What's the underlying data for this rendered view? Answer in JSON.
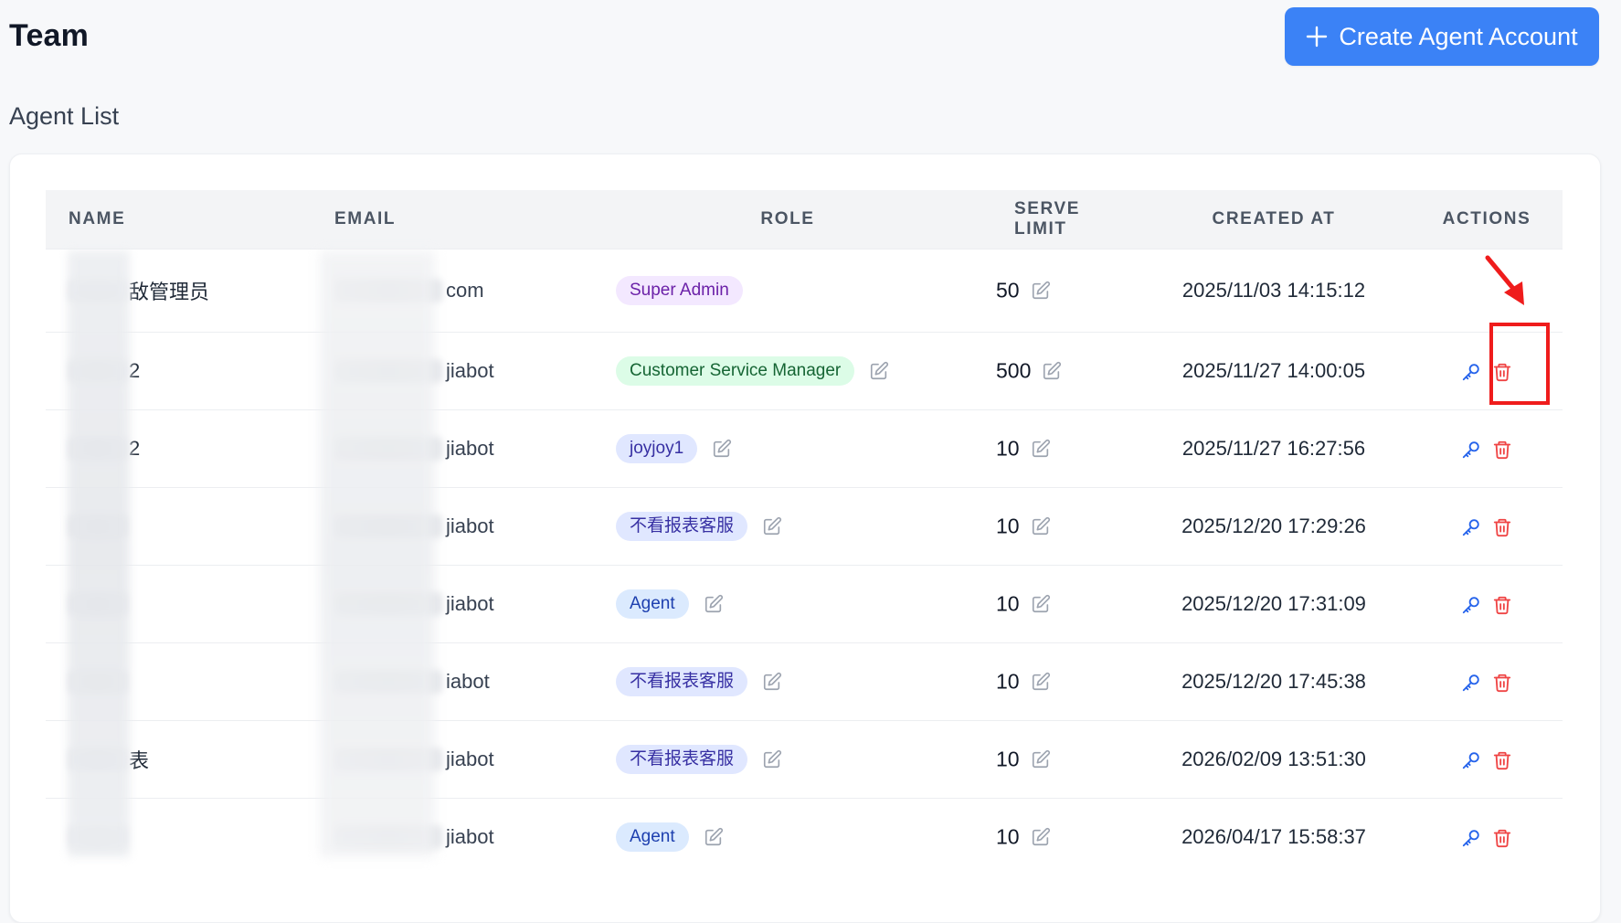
{
  "page": {
    "title": "Team",
    "create_button_label": "Create Agent Account",
    "section_title": "Agent List"
  },
  "table": {
    "headers": {
      "name": "NAME",
      "email": "EMAIL",
      "role": "ROLE",
      "serve_limit": "SERVE LIMIT",
      "created_at": "CREATED AT",
      "actions": "ACTIONS"
    },
    "rows": [
      {
        "name": "敌管理员",
        "email": "com",
        "role": "Super Admin",
        "role_style": "super",
        "role_editable": false,
        "serve_limit": "50",
        "created_at": "2025/11/03 14:15:12",
        "actions_visible": false
      },
      {
        "name": "2",
        "email": "jiabot",
        "role": "Customer Service Manager",
        "role_style": "csm",
        "role_editable": true,
        "serve_limit": "500",
        "created_at": "2025/11/27 14:00:05",
        "actions_visible": true
      },
      {
        "name": "2",
        "email": "jiabot",
        "role": "joyjoy1",
        "role_style": "custom",
        "role_editable": true,
        "serve_limit": "10",
        "created_at": "2025/11/27 16:27:56",
        "actions_visible": true
      },
      {
        "name": "",
        "email": "jiabot",
        "role": "不看报表客服",
        "role_style": "custom",
        "role_editable": true,
        "serve_limit": "10",
        "created_at": "2025/12/20 17:29:26",
        "actions_visible": true
      },
      {
        "name": "",
        "email": "jiabot",
        "role": "Agent",
        "role_style": "agent",
        "role_editable": true,
        "serve_limit": "10",
        "created_at": "2025/12/20 17:31:09",
        "actions_visible": true
      },
      {
        "name": "",
        "email": "iabot",
        "role": "不看报表客服",
        "role_style": "custom",
        "role_editable": true,
        "serve_limit": "10",
        "created_at": "2025/12/20 17:45:38",
        "actions_visible": true
      },
      {
        "name": "表",
        "email": "jiabot",
        "role": "不看报表客服",
        "role_style": "custom",
        "role_editable": true,
        "serve_limit": "10",
        "created_at": "2026/02/09 13:51:30",
        "actions_visible": true
      },
      {
        "name": "",
        "email": "jiabot",
        "role": "Agent",
        "role_style": "agent",
        "role_editable": true,
        "serve_limit": "10",
        "created_at": "2026/04/17 15:58:37",
        "actions_visible": true
      }
    ]
  },
  "icons": {
    "create": "plus-icon",
    "edit": "edit-icon",
    "key": "key-icon",
    "delete": "trash-icon"
  },
  "colors": {
    "primary": "#3b82f6",
    "danger": "#ef4444",
    "annotation": "#ef1c1c"
  }
}
